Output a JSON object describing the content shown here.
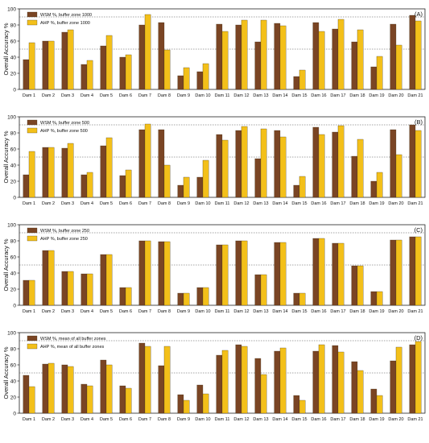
{
  "colors": {
    "wsm": "#7a4524",
    "ahp": "#f3c01a",
    "refline": "#555555",
    "frame": "#222222"
  },
  "chart_data": [
    {
      "type": "bar",
      "panel_label": "(A)",
      "ylabel": "Overall Accuracy %",
      "ylim": [
        0,
        100
      ],
      "yticks": [
        0,
        20,
        40,
        60,
        80,
        100
      ],
      "reference_lines": [
        50,
        90
      ],
      "legend_position": "top-left",
      "categories": [
        "Dam 1",
        "Dam 2",
        "Dam 3",
        "Dam 4",
        "Dam 5",
        "Dam 6",
        "Dam 7",
        "Dam 8",
        "Dam 9",
        "Dam 10",
        "Dam 11",
        "Dam 12",
        "Dam 13",
        "Dam 14",
        "Dam 15",
        "Dam 16",
        "Dam 17",
        "Dam 18",
        "Dam 19",
        "Dam 20",
        "Dam 21"
      ],
      "series": [
        {
          "name": "WSM %, buffer zone 1000",
          "values": [
            37,
            60,
            71,
            31,
            54,
            40,
            80,
            83,
            17,
            22,
            81,
            80,
            59,
            82,
            16,
            83,
            75,
            59,
            28,
            81,
            92
          ]
        },
        {
          "name": "AHP %, buffer zone 1000",
          "values": [
            58,
            60,
            74,
            36,
            67,
            43,
            93,
            49,
            27,
            32,
            72,
            86,
            86,
            79,
            24,
            72,
            87,
            74,
            41,
            55,
            85
          ]
        }
      ]
    },
    {
      "type": "bar",
      "panel_label": "(B)",
      "ylabel": "Overall Accuracy %",
      "ylim": [
        0,
        100
      ],
      "yticks": [
        0,
        20,
        40,
        60,
        80,
        100
      ],
      "reference_lines": [
        50,
        90
      ],
      "legend_position": "top-left",
      "categories": [
        "Dam 1",
        "Dam 2",
        "Dam 3",
        "Dam 4",
        "Dam 5",
        "Dam 6",
        "Dam 7",
        "Dam 8",
        "Dam 9",
        "Dam 10",
        "Dam 11",
        "Dam 12",
        "Dam 13",
        "Dam 14",
        "Dam 15",
        "Dam 16",
        "Dam 17",
        "Dam 18",
        "Dam 19",
        "Dam 20",
        "Dam 21"
      ],
      "series": [
        {
          "name": "WSM %, buffer zone 500",
          "values": [
            28,
            62,
            61,
            28,
            64,
            27,
            84,
            84,
            15,
            25,
            78,
            83,
            48,
            83,
            15,
            87,
            81,
            51,
            20,
            84,
            90
          ]
        },
        {
          "name": "AHP %, buffer zone 500",
          "values": [
            57,
            62,
            67,
            31,
            74,
            34,
            91,
            40,
            25,
            46,
            71,
            88,
            85,
            75,
            26,
            78,
            89,
            72,
            31,
            53,
            83
          ]
        }
      ]
    },
    {
      "type": "bar",
      "panel_label": "(C)",
      "ylabel": "Overall Accuracy %",
      "ylim": [
        0,
        100
      ],
      "yticks": [
        0,
        20,
        40,
        60,
        80,
        100
      ],
      "reference_lines": [
        50,
        90
      ],
      "legend_position": "top-left",
      "categories": [
        "Dam 1",
        "Dam 2",
        "Dam 3",
        "Dam 4",
        "Dam 5",
        "Dam 6",
        "Dam 7",
        "Dam 8",
        "Dam 9",
        "Dam 10",
        "Dam 11",
        "Dam 12",
        "Dam 13",
        "Dam 14",
        "Dam 15",
        "Dam 16",
        "Dam 17",
        "Dam 18",
        "Dam 19",
        "Dam 20",
        "Dam 21"
      ],
      "series": [
        {
          "name": "WSM %, buffer zone 250",
          "values": [
            31,
            68,
            42,
            39,
            63,
            22,
            80,
            79,
            15,
            22,
            75,
            80,
            38,
            78,
            15,
            83,
            77,
            49,
            17,
            81,
            85
          ]
        },
        {
          "name": "AHP %, buffer zone 250",
          "values": [
            31,
            68,
            42,
            39,
            63,
            22,
            80,
            79,
            15,
            22,
            75,
            80,
            38,
            78,
            15,
            83,
            77,
            49,
            17,
            81,
            85
          ]
        }
      ]
    },
    {
      "type": "bar",
      "panel_label": "(D)",
      "ylabel": "Overall Accuracy %",
      "ylim": [
        0,
        100
      ],
      "yticks": [
        0,
        20,
        40,
        60,
        80,
        100
      ],
      "reference_lines": [
        50,
        90
      ],
      "legend_position": "top-left",
      "categories": [
        "Dam 1",
        "Dam 2",
        "Dam 3",
        "Dam 4",
        "Dam 5",
        "Dam 6",
        "Dam 7",
        "Dam 8",
        "Dam 9",
        "Dam 10",
        "Dam 11",
        "Dam 12",
        "Dam 13",
        "Dam 14",
        "Dam 15",
        "Dam 16",
        "Dam 17",
        "Dam 18",
        "Dam 19",
        "Dam 20",
        "Dam 21"
      ],
      "series": [
        {
          "name": "WSM %, mean of all buffer zones",
          "values": [
            47,
            61,
            60,
            36,
            66,
            34,
            87,
            59,
            23,
            35,
            72,
            85,
            68,
            77,
            22,
            77,
            84,
            64,
            30,
            65,
            85
          ]
        },
        {
          "name": "AHP %, mean of all buffer zones",
          "values": [
            33,
            62,
            58,
            34,
            60,
            31,
            83,
            83,
            16,
            24,
            78,
            83,
            48,
            81,
            16,
            85,
            76,
            53,
            22,
            82,
            89
          ]
        }
      ]
    }
  ]
}
